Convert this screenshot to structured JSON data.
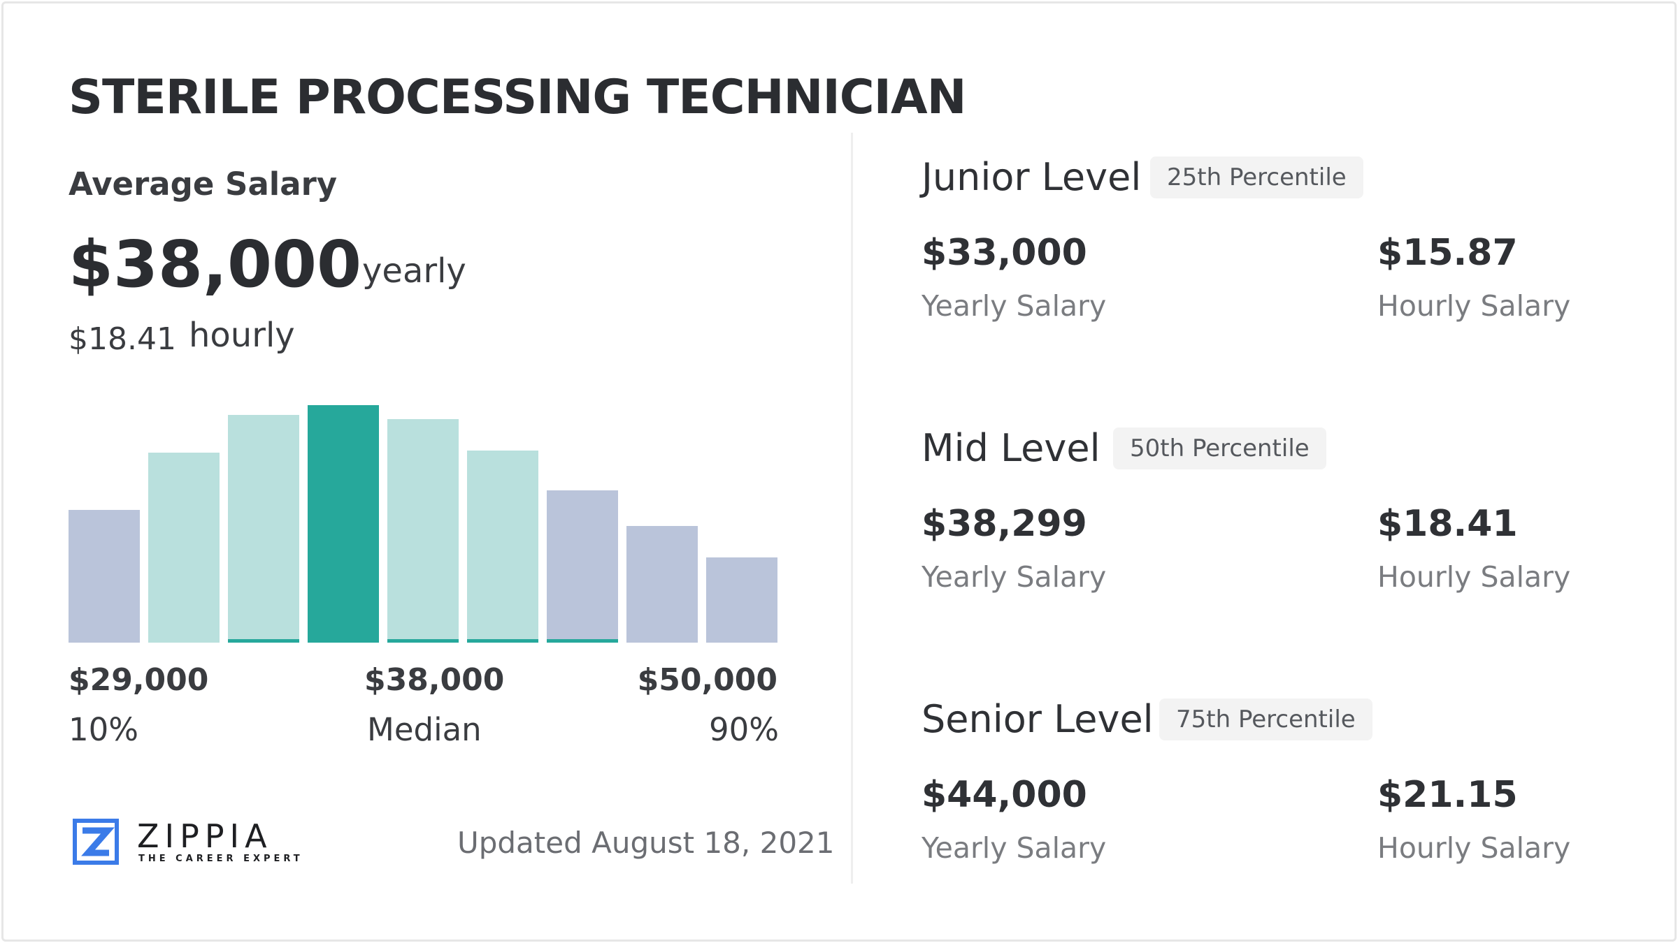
{
  "title": "STERILE PROCESSING TECHNICIAN",
  "average": {
    "label": "Average Salary",
    "yearly": "$38,000",
    "yearly_unit": "yearly",
    "hourly": "$18.41",
    "hourly_unit": "hourly"
  },
  "chart_data": {
    "type": "bar",
    "title": "",
    "xlabel": "",
    "ylabel": "",
    "note": "relative distribution, no axis printed",
    "values": [
      56,
      80,
      96,
      100,
      94,
      81,
      64,
      49,
      36
    ],
    "colors": [
      "#bac4da",
      "#b9e0dd",
      "#b9e0dd",
      "#26a89b",
      "#b9e0dd",
      "#b9e0dd",
      "#bac4da",
      "#bac4da",
      "#bac4da"
    ],
    "highlight_color": "#26a89b",
    "ticks": [
      {
        "value": "$29,000",
        "label": "10%"
      },
      {
        "value": "$38,000",
        "label": "Median"
      },
      {
        "value": "$50,000",
        "label": "90%"
      }
    ]
  },
  "updated": "Updated August 18, 2021",
  "logo": {
    "name": "ZIPPIA",
    "tagline": "THE CAREER EXPERT",
    "color": "#3b7be8"
  },
  "levels": [
    {
      "name": "Junior Level",
      "badge": "25th Percentile",
      "yearly": "$33,000",
      "yearly_label": "Yearly Salary",
      "hourly": "$15.87",
      "hourly_label": "Hourly Salary"
    },
    {
      "name": "Mid Level",
      "badge": "50th Percentile",
      "yearly": "$38,299",
      "yearly_label": "Yearly Salary",
      "hourly": "$18.41",
      "hourly_label": "Hourly Salary"
    },
    {
      "name": "Senior Level",
      "badge": "75th Percentile",
      "yearly": "$44,000",
      "yearly_label": "Yearly Salary",
      "hourly": "$21.15",
      "hourly_label": "Hourly Salary"
    }
  ]
}
